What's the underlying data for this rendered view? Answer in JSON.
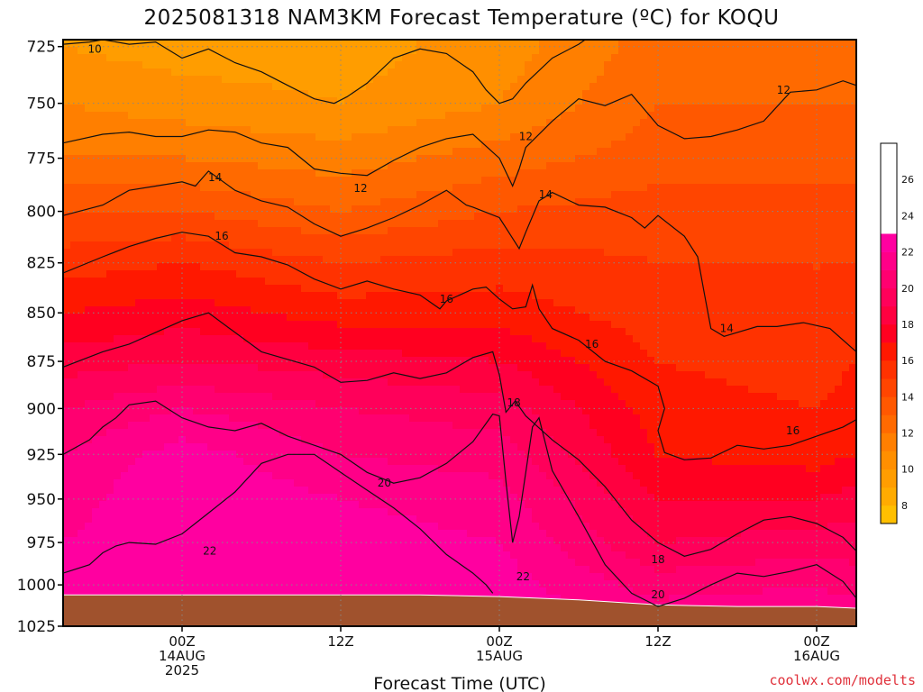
{
  "title": "2025081318 NAM3KM Forecast Temperature (ºC) for KOQU",
  "xlabel": "Forecast Time (UTC)",
  "credit": "coolwx.com/modelts",
  "colors": {
    "ground": "#a0522d",
    "frame": "#000000",
    "grid": "#888888",
    "credit": "#e0303a"
  },
  "chart_data": {
    "type": "heatmap",
    "title": "2025081318 NAM3KM Forecast Temperature (ºC) for KOQU",
    "xlabel": "Forecast Time (UTC)",
    "ylabel": "",
    "x_unit": "forecast hour",
    "xlim": [
      -3,
      57
    ],
    "y_unit": "hPa",
    "ylim": [
      1025,
      722
    ],
    "y_scale": "log",
    "y_ticks": [
      725,
      750,
      775,
      800,
      825,
      850,
      875,
      900,
      925,
      950,
      975,
      1000,
      1025
    ],
    "x_ticks": [
      {
        "hour": 6,
        "lines": [
          "00Z",
          "14AUG",
          "2025"
        ]
      },
      {
        "hour": 18,
        "lines": [
          "12Z"
        ]
      },
      {
        "hour": 30,
        "lines": [
          "00Z",
          "15AUG"
        ]
      },
      {
        "hour": 42,
        "lines": [
          "12Z"
        ]
      },
      {
        "hour": 54,
        "lines": [
          "00Z",
          "16AUG"
        ]
      }
    ],
    "grid": "dotted",
    "colorbar": {
      "placement": "right",
      "levels": [
        7,
        8,
        9,
        10,
        11,
        12,
        13,
        14,
        15,
        16,
        17,
        18,
        19,
        20,
        21,
        22,
        23,
        24,
        25,
        26,
        27,
        28
      ],
      "colors": [
        "#ffbf00",
        "#ffab00",
        "#ff9d00",
        "#ff8f00",
        "#ff7f00",
        "#ff6a00",
        "#ff5800",
        "#ff4500",
        "#ff3200",
        "#ff1800",
        "#ff0020",
        "#ff0040",
        "#ff005a",
        "#ff0070",
        "#ff0088",
        "#ff00a0"
      ],
      "tick_labels": [
        8,
        10,
        12,
        14,
        16,
        18,
        20,
        22,
        24,
        26
      ]
    },
    "contour_levels": [
      10,
      12,
      14,
      16,
      18,
      20,
      22
    ],
    "contour_labels": [
      {
        "text": "10",
        "hour": -0.6,
        "p": 726
      },
      {
        "text": "12",
        "hour": 19.5,
        "p": 789
      },
      {
        "text": "12",
        "hour": 32,
        "p": 765
      },
      {
        "text": "12",
        "hour": 51.5,
        "p": 744
      },
      {
        "text": "14",
        "hour": 8.5,
        "p": 784
      },
      {
        "text": "14",
        "hour": 33.5,
        "p": 792
      },
      {
        "text": "14",
        "hour": 47.2,
        "p": 858
      },
      {
        "text": "16",
        "hour": 9,
        "p": 812
      },
      {
        "text": "16",
        "hour": 26,
        "p": 843
      },
      {
        "text": "16",
        "hour": 37,
        "p": 866
      },
      {
        "text": "16",
        "hour": 52.2,
        "p": 912
      },
      {
        "text": "18",
        "hour": 31.1,
        "p": 897
      },
      {
        "text": "18",
        "hour": 42,
        "p": 985
      },
      {
        "text": "20",
        "hour": 21.3,
        "p": 941
      },
      {
        "text": "20",
        "hour": 42,
        "p": 1006
      },
      {
        "text": "22",
        "hour": 8.1,
        "p": 980
      },
      {
        "text": "22",
        "hour": 31.8,
        "p": 995
      }
    ],
    "isotherms": [
      {
        "level": 10,
        "points": [
          [
            -3,
            724
          ],
          [
            -1,
            723
          ],
          [
            0,
            722
          ],
          [
            2,
            724
          ],
          [
            4,
            723
          ],
          [
            6,
            730
          ],
          [
            8,
            726
          ],
          [
            10,
            732
          ],
          [
            12,
            736
          ],
          [
            14,
            742
          ],
          [
            16,
            748
          ],
          [
            17.5,
            750
          ],
          [
            18.5,
            747
          ],
          [
            20,
            741
          ],
          [
            22,
            730
          ],
          [
            24,
            726
          ],
          [
            26,
            728
          ],
          [
            28,
            736
          ],
          [
            29,
            744
          ],
          [
            30,
            750
          ],
          [
            31,
            748
          ],
          [
            32,
            741
          ],
          [
            34,
            730
          ],
          [
            36,
            724
          ],
          [
            36.5,
            722
          ]
        ]
      },
      {
        "level": 12,
        "points": [
          [
            -3,
            768
          ],
          [
            0,
            764
          ],
          [
            2,
            763
          ],
          [
            4,
            765
          ],
          [
            6,
            765
          ],
          [
            8,
            762
          ],
          [
            10,
            763
          ],
          [
            12,
            768
          ],
          [
            14,
            770
          ],
          [
            16,
            780
          ],
          [
            18,
            782
          ],
          [
            20,
            783
          ],
          [
            22,
            776
          ],
          [
            24,
            770
          ],
          [
            26,
            766
          ],
          [
            28,
            764
          ],
          [
            30,
            775
          ],
          [
            31,
            788
          ],
          [
            31.5,
            780
          ],
          [
            32,
            770
          ],
          [
            34,
            758
          ],
          [
            36,
            748
          ],
          [
            38,
            751
          ],
          [
            40,
            746
          ],
          [
            42,
            760
          ],
          [
            44,
            766
          ],
          [
            46,
            765
          ],
          [
            48,
            762
          ],
          [
            50,
            758
          ],
          [
            52,
            745
          ],
          [
            54,
            744
          ],
          [
            56,
            740
          ],
          [
            57,
            742
          ]
        ]
      },
      {
        "level": 14,
        "points": [
          [
            -3,
            802
          ],
          [
            0,
            797
          ],
          [
            2,
            790
          ],
          [
            4,
            788
          ],
          [
            6,
            786
          ],
          [
            7,
            788
          ],
          [
            8,
            781
          ],
          [
            10,
            790
          ],
          [
            12,
            795
          ],
          [
            14,
            798
          ],
          [
            16,
            806
          ],
          [
            18,
            812
          ],
          [
            20,
            808
          ],
          [
            22,
            803
          ],
          [
            24,
            797
          ],
          [
            26,
            790
          ],
          [
            27.5,
            797
          ],
          [
            28,
            798
          ],
          [
            30,
            803
          ],
          [
            31.5,
            818
          ],
          [
            32,
            810
          ],
          [
            33,
            795
          ],
          [
            34,
            791
          ],
          [
            36,
            797
          ],
          [
            38,
            798
          ],
          [
            40,
            803
          ],
          [
            41,
            808
          ],
          [
            42,
            802
          ],
          [
            44,
            812
          ],
          [
            45,
            822
          ],
          [
            45.5,
            840
          ],
          [
            46,
            858
          ],
          [
            47,
            862
          ],
          [
            48,
            860
          ],
          [
            49.5,
            857
          ],
          [
            51,
            857
          ],
          [
            53,
            855
          ],
          [
            55,
            858
          ],
          [
            57,
            870
          ]
        ]
      },
      {
        "level": 16,
        "points": [
          [
            -3,
            830
          ],
          [
            0,
            822
          ],
          [
            2,
            817
          ],
          [
            4,
            813
          ],
          [
            6,
            810
          ],
          [
            8,
            812
          ],
          [
            10,
            820
          ],
          [
            12,
            822
          ],
          [
            14,
            826
          ],
          [
            16,
            833
          ],
          [
            18,
            838
          ],
          [
            20,
            834
          ],
          [
            22,
            838
          ],
          [
            24,
            841
          ],
          [
            25.5,
            848
          ],
          [
            26,
            844
          ],
          [
            28,
            838
          ],
          [
            29,
            837
          ],
          [
            30,
            843
          ],
          [
            31,
            848
          ],
          [
            32,
            847
          ],
          [
            32.5,
            836
          ],
          [
            33,
            848
          ],
          [
            34,
            858
          ],
          [
            36,
            864
          ],
          [
            38,
            875
          ],
          [
            40,
            880
          ],
          [
            42,
            888
          ],
          [
            42.5,
            900
          ],
          [
            42,
            912
          ],
          [
            42.5,
            924
          ],
          [
            44,
            928
          ],
          [
            46,
            927
          ],
          [
            48,
            920
          ],
          [
            50,
            922
          ],
          [
            52,
            920
          ],
          [
            54,
            915
          ],
          [
            56,
            910
          ],
          [
            57,
            906
          ]
        ]
      },
      {
        "level": 18,
        "points": [
          [
            -3,
            878
          ],
          [
            0,
            870
          ],
          [
            2,
            866
          ],
          [
            4,
            860
          ],
          [
            6,
            854
          ],
          [
            8,
            850
          ],
          [
            10,
            860
          ],
          [
            12,
            870
          ],
          [
            14,
            874
          ],
          [
            16,
            878
          ],
          [
            18,
            886
          ],
          [
            20,
            885
          ],
          [
            22,
            881
          ],
          [
            24,
            884
          ],
          [
            26,
            881
          ],
          [
            28,
            873
          ],
          [
            29.5,
            870
          ],
          [
            30,
            882
          ],
          [
            30.5,
            902
          ],
          [
            31.2,
            896
          ],
          [
            32,
            904
          ],
          [
            34,
            917
          ],
          [
            36,
            928
          ],
          [
            38,
            943
          ],
          [
            40,
            962
          ],
          [
            42,
            975
          ],
          [
            44,
            983
          ],
          [
            46,
            979
          ],
          [
            48,
            970
          ],
          [
            50,
            962
          ],
          [
            52,
            960
          ],
          [
            54,
            964
          ],
          [
            56,
            972
          ],
          [
            57,
            980
          ]
        ]
      },
      {
        "level": 20,
        "points": [
          [
            -3,
            925
          ],
          [
            -1,
            917
          ],
          [
            0,
            910
          ],
          [
            1,
            905
          ],
          [
            2,
            898
          ],
          [
            4,
            896
          ],
          [
            6,
            905
          ],
          [
            8,
            910
          ],
          [
            10,
            912
          ],
          [
            12,
            908
          ],
          [
            14,
            915
          ],
          [
            16,
            920
          ],
          [
            18,
            925
          ],
          [
            20,
            935
          ],
          [
            21,
            938
          ],
          [
            22,
            941
          ],
          [
            24,
            938
          ],
          [
            26,
            930
          ],
          [
            28,
            918
          ],
          [
            29.5,
            903
          ],
          [
            30,
            904
          ],
          [
            30.5,
            940
          ],
          [
            31,
            975
          ],
          [
            31.5,
            960
          ],
          [
            32,
            935
          ],
          [
            32.5,
            910
          ],
          [
            33,
            905
          ],
          [
            34,
            934
          ],
          [
            36,
            960
          ],
          [
            38,
            988
          ],
          [
            40,
            1005
          ],
          [
            42,
            1013
          ],
          [
            44,
            1008
          ],
          [
            46,
            1000
          ],
          [
            48,
            993
          ],
          [
            50,
            995
          ],
          [
            52,
            992
          ],
          [
            54,
            988
          ],
          [
            56,
            998
          ],
          [
            57,
            1008
          ]
        ]
      },
      {
        "level": 22,
        "points": [
          [
            -3,
            993
          ],
          [
            -1,
            988
          ],
          [
            0,
            981
          ],
          [
            1,
            977
          ],
          [
            2,
            975
          ],
          [
            4,
            976
          ],
          [
            6,
            970
          ],
          [
            8,
            958
          ],
          [
            10,
            946
          ],
          [
            12,
            930
          ],
          [
            14,
            925
          ],
          [
            16,
            925
          ],
          [
            18,
            935
          ],
          [
            20,
            945
          ],
          [
            22,
            955
          ],
          [
            24,
            967
          ],
          [
            26,
            982
          ],
          [
            28,
            993
          ],
          [
            29,
            1000
          ],
          [
            29.5,
            1005
          ]
        ]
      }
    ],
    "grid_data": {
      "x_hours": [
        -3,
        6,
        18,
        30,
        42,
        54,
        57
      ],
      "p_levels": [
        725,
        750,
        775,
        800,
        825,
        850,
        875,
        900,
        925,
        950,
        975,
        1000,
        1025
      ],
      "temperature_c": [
        [
          10.0,
          9.5,
          9.5,
          10.5,
          12.5,
          12.7,
          12.7
        ],
        [
          11.0,
          10.5,
          10.0,
          11.0,
          13.0,
          13.0,
          13.0
        ],
        [
          12.0,
          12.0,
          11.5,
          12.5,
          13.5,
          13.5,
          13.5
        ],
        [
          14.0,
          14.0,
          13.0,
          14.0,
          14.5,
          14.5,
          14.5
        ],
        [
          15.5,
          16.0,
          15.0,
          15.5,
          15.0,
          15.0,
          15.0
        ],
        [
          17.0,
          17.5,
          16.5,
          16.5,
          15.5,
          15.0,
          15.5
        ],
        [
          18.5,
          19.0,
          18.5,
          18.0,
          16.0,
          15.5,
          16.0
        ],
        [
          20.0,
          21.0,
          20.0,
          19.5,
          16.5,
          16.0,
          16.5
        ],
        [
          21.0,
          22.5,
          21.0,
          20.5,
          17.0,
          16.5,
          17.0
        ],
        [
          21.5,
          23.0,
          22.0,
          21.5,
          18.0,
          18.0,
          18.5
        ],
        [
          22.0,
          23.0,
          22.5,
          22.0,
          19.0,
          19.5,
          19.5
        ],
        [
          22.5,
          23.0,
          23.0,
          22.5,
          20.5,
          21.0,
          20.5
        ],
        [
          23.0,
          23.0,
          23.5,
          23.0,
          22.0,
          22.0,
          22.0
        ]
      ]
    },
    "surface_pressure_hpa": [
      [
        -3,
        1006
      ],
      [
        0,
        1006
      ],
      [
        6,
        1006
      ],
      [
        12,
        1006
      ],
      [
        18,
        1006
      ],
      [
        24,
        1006
      ],
      [
        30,
        1007
      ],
      [
        36,
        1009
      ],
      [
        42,
        1012
      ],
      [
        48,
        1013
      ],
      [
        54,
        1013
      ],
      [
        57,
        1014
      ]
    ]
  }
}
